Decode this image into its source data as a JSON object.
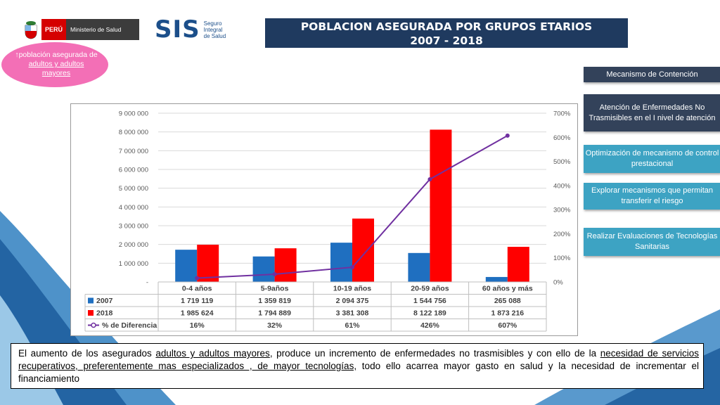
{
  "header": {
    "peru_label": "PERÚ",
    "ministry_label": "Ministerio de Salud",
    "sis_logo": "SIS",
    "sis_line1": "Seguro",
    "sis_line2": "Integral",
    "sis_line3": "de Salud"
  },
  "title": {
    "line1": "POBLACION ASEGURADA POR GRUPOS ETARIOS",
    "line2": "2007 - 2018"
  },
  "bubble": {
    "arrow": "↑",
    "part1": "población asegurada de ",
    "link": "adultos y adultos mayores"
  },
  "sidebar": {
    "items": [
      {
        "label": "Mecanismo de Contención"
      },
      {
        "label": "Atención de Enfermedades No Trasmisibles en el I nivel de atención"
      },
      {
        "label": "Optimización de mecanismo de control prestacional"
      },
      {
        "label": "Explorar mecanismos  que permitan transferir el riesgo"
      },
      {
        "label": "Realizar Evaluaciones de Tecnologías Sanitarias"
      }
    ]
  },
  "chart_data": {
    "type": "bar",
    "categories": [
      "0-4 años",
      "5-9años",
      "10-19 años",
      "20-59 años",
      "60 años y más"
    ],
    "series": [
      {
        "name": "2007",
        "values": [
          1719119,
          1359819,
          2094375,
          1544756,
          265088
        ],
        "labels": [
          "1 719 119",
          "1 359 819",
          "2 094 375",
          "1 544 756",
          "265 088"
        ],
        "color": "#1f6fc0"
      },
      {
        "name": "2018",
        "values": [
          1985624,
          1794889,
          3381308,
          8122189,
          1873216
        ],
        "labels": [
          "1 985 624",
          "1 794 889",
          "3 381 308",
          "8 122 189",
          "1 873 216"
        ],
        "color": "#ff0000"
      },
      {
        "name": "% de Diferencia",
        "axis": "right",
        "type": "line",
        "values": [
          16,
          32,
          61,
          426,
          607
        ],
        "labels": [
          "16%",
          "32%",
          "61%",
          "426%",
          "607%"
        ],
        "color": "#7030a0"
      }
    ],
    "ylim": [
      0,
      9000000
    ],
    "y2lim": [
      0,
      700
    ],
    "yticks": [
      "-",
      "1 000 000",
      "2 000 000",
      "3 000 000",
      "4 000 000",
      "5 000 000",
      "6 000 000",
      "7 000 000",
      "8 000 000",
      "9 000 000"
    ],
    "y2ticks": [
      "0%",
      "100%",
      "200%",
      "300%",
      "400%",
      "500%",
      "600%",
      "700%"
    ],
    "grid": true,
    "legend": "data-table"
  },
  "bottom": {
    "t1": "El aumento de los asegurados ",
    "u1": "adultos y adultos mayores",
    "t2": ", produce un incremento de enfermedades no trasmisibles y con ello de la ",
    "u2": "necesidad de servicios recuperativos, preferentemente mas especializados , de mayor tecnologías,",
    "t3": " todo ello acarrea mayor gasto en salud y la necesidad de incrementar el financiamiento"
  },
  "colors": {
    "title_bg": "#1f3a5f",
    "side_dark": "#33425a",
    "side_teal": "#3da3c3",
    "bubble": "#f36fb6",
    "swoosh": "#3b8fc7"
  },
  "icons": {
    "coat_of_arms": "peru-coat-of-arms-icon"
  }
}
